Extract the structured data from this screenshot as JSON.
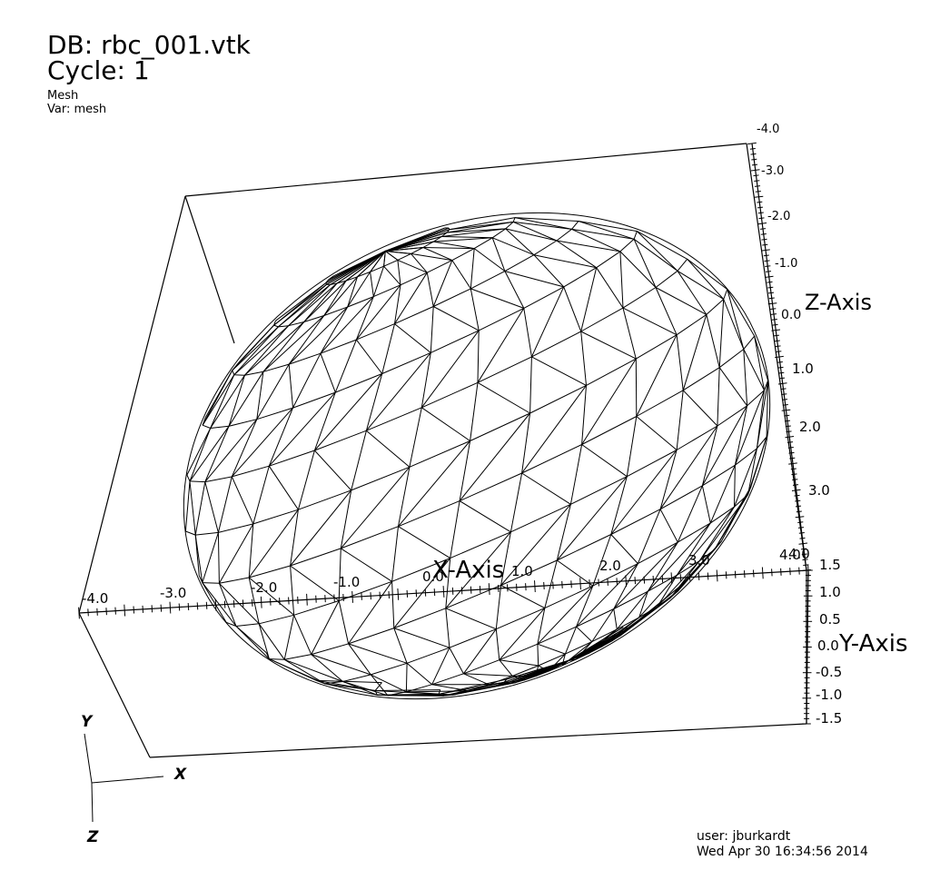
{
  "header": {
    "database": "DB: rbc_001.vtk",
    "cycle": "Cycle: 1",
    "plot_type": "Mesh",
    "variable": "Var: mesh"
  },
  "footer": {
    "user": "user: jburkardt",
    "timestamp": "Wed Apr 30 16:34:56 2014"
  },
  "axes": {
    "x": {
      "title": "X-Axis",
      "ticks": [
        "-4.0",
        "-3.0",
        "-2.0",
        "-1.0",
        "0.0",
        "1.0",
        "2.0",
        "3.0",
        "4.0"
      ]
    },
    "y": {
      "title": "Y-Axis",
      "ticks": [
        "1.5",
        "1.0",
        "0.5",
        "0.0",
        "-0.5",
        "-1.0",
        "-1.5"
      ]
    },
    "z": {
      "title": "Z-Axis",
      "ticks": [
        "-4.0",
        "-3.0",
        "-2.0",
        "-1.0",
        "0.0",
        "1.0",
        "2.0",
        "3.0",
        "4.0"
      ]
    }
  },
  "triad": {
    "x_label": "X",
    "y_label": "Y",
    "z_label": "Z"
  },
  "colors": {
    "background": "#ffffff",
    "foreground": "#000000"
  }
}
